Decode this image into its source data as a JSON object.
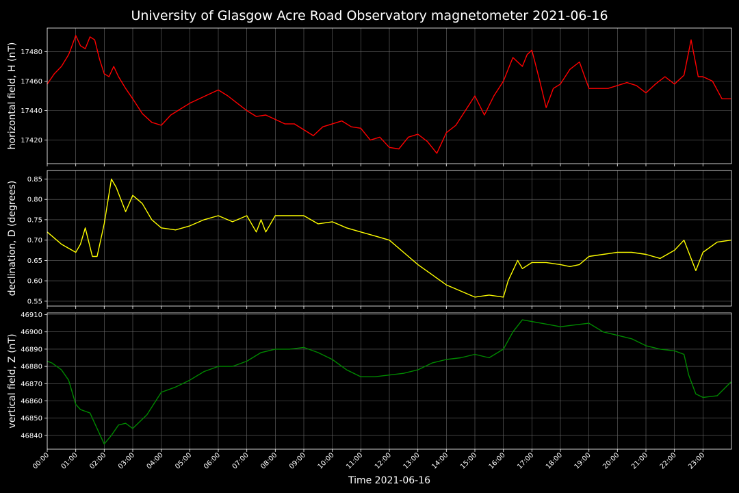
{
  "chart_data": {
    "type": "line",
    "title": "University of Glasgow Acre Road Observatory magnetometer 2021-06-16",
    "xlabel": "Time 2021-06-16",
    "x_ticks": [
      "00:00",
      "01:00",
      "02:00",
      "03:00",
      "04:00",
      "05:00",
      "06:00",
      "07:00",
      "08:00",
      "09:00",
      "10:00",
      "11:00",
      "12:00",
      "13:00",
      "14:00",
      "15:00",
      "16:00",
      "17:00",
      "18:00",
      "19:00",
      "20:00",
      "21:00",
      "22:00",
      "23:00"
    ],
    "xlim": [
      "00:00",
      "24:00"
    ],
    "grid": true,
    "panels": [
      {
        "ylabel": "horizontal field, H (nT)",
        "color": "#ff0000",
        "ylim": [
          17404,
          17496
        ],
        "yticks": [
          17420,
          17440,
          17460,
          17480
        ],
        "series": {
          "x": [
            "00:00",
            "00:15",
            "00:30",
            "00:45",
            "00:50",
            "01:00",
            "01:10",
            "01:20",
            "01:30",
            "01:40",
            "01:50",
            "02:00",
            "02:10",
            "02:20",
            "02:30",
            "02:45",
            "03:00",
            "03:20",
            "03:40",
            "04:00",
            "04:20",
            "04:40",
            "05:00",
            "05:20",
            "05:40",
            "06:00",
            "06:20",
            "06:40",
            "07:00",
            "07:20",
            "07:40",
            "08:00",
            "08:20",
            "08:40",
            "09:00",
            "09:20",
            "09:40",
            "10:00",
            "10:20",
            "10:40",
            "11:00",
            "11:20",
            "11:40",
            "12:00",
            "12:20",
            "12:40",
            "13:00",
            "13:20",
            "13:40",
            "14:00",
            "14:20",
            "14:40",
            "15:00",
            "15:20",
            "15:40",
            "16:00",
            "16:10",
            "16:20",
            "16:40",
            "16:50",
            "17:00",
            "17:15",
            "17:30",
            "17:45",
            "18:00",
            "18:20",
            "18:40",
            "19:00",
            "19:20",
            "19:40",
            "20:00",
            "20:20",
            "20:40",
            "21:00",
            "21:20",
            "21:40",
            "22:00",
            "22:20",
            "22:35",
            "22:50",
            "23:00",
            "23:20",
            "23:40",
            "23:59"
          ],
          "values": [
            17458,
            17465,
            17470,
            17478,
            17482,
            17491,
            17484,
            17482,
            17490,
            17488,
            17475,
            17465,
            17463,
            17470,
            17463,
            17455,
            17448,
            17438,
            17432,
            17430,
            17437,
            17441,
            17445,
            17448,
            17451,
            17454,
            17450,
            17445,
            17440,
            17436,
            17437,
            17434,
            17431,
            17431,
            17427,
            17423,
            17429,
            17431,
            17433,
            17429,
            17428,
            17420,
            17422,
            17415,
            17414,
            17422,
            17424,
            17419,
            17411,
            17425,
            17430,
            17440,
            17450,
            17437,
            17450,
            17460,
            17468,
            17476,
            17470,
            17478,
            17481,
            17462,
            17442,
            17455,
            17458,
            17468,
            17473,
            17455,
            17455,
            17455,
            17457,
            17459,
            17457,
            17452,
            17458,
            17463,
            17458,
            17464,
            17488,
            17463,
            17463,
            17460,
            17448,
            17448
          ]
        }
      },
      {
        "ylabel": "declination, D (degrees)",
        "color": "#ffff00",
        "ylim": [
          0.538,
          0.871
        ],
        "yticks": [
          0.55,
          0.6,
          0.65,
          0.7,
          0.75,
          0.8,
          0.85
        ],
        "series": {
          "x": [
            "00:00",
            "00:10",
            "00:20",
            "00:30",
            "00:45",
            "01:00",
            "01:10",
            "01:20",
            "01:35",
            "01:45",
            "02:00",
            "02:15",
            "02:25",
            "02:45",
            "03:00",
            "03:20",
            "03:40",
            "04:00",
            "04:30",
            "05:00",
            "05:30",
            "06:00",
            "06:30",
            "07:00",
            "07:20",
            "07:30",
            "07:40",
            "08:00",
            "08:30",
            "09:00",
            "09:30",
            "10:00",
            "10:30",
            "11:00",
            "11:30",
            "12:00",
            "12:30",
            "13:00",
            "13:30",
            "14:00",
            "14:30",
            "15:00",
            "15:30",
            "16:00",
            "16:10",
            "16:30",
            "16:40",
            "17:00",
            "17:30",
            "18:00",
            "18:20",
            "18:40",
            "19:00",
            "19:30",
            "20:00",
            "20:30",
            "21:00",
            "21:30",
            "22:00",
            "22:20",
            "22:30",
            "22:45",
            "23:00",
            "23:30",
            "23:59"
          ],
          "values": [
            0.72,
            0.71,
            0.7,
            0.69,
            0.68,
            0.67,
            0.69,
            0.73,
            0.66,
            0.66,
            0.74,
            0.85,
            0.83,
            0.77,
            0.81,
            0.79,
            0.75,
            0.73,
            0.725,
            0.735,
            0.75,
            0.76,
            0.745,
            0.76,
            0.72,
            0.75,
            0.72,
            0.76,
            0.76,
            0.76,
            0.74,
            0.745,
            0.73,
            0.72,
            0.71,
            0.7,
            0.67,
            0.64,
            0.615,
            0.59,
            0.575,
            0.56,
            0.565,
            0.56,
            0.6,
            0.65,
            0.63,
            0.645,
            0.645,
            0.64,
            0.635,
            0.64,
            0.66,
            0.665,
            0.67,
            0.67,
            0.665,
            0.655,
            0.675,
            0.7,
            0.67,
            0.625,
            0.67,
            0.695,
            0.7
          ]
        }
      },
      {
        "ylabel": "vertical field, Z (nT)",
        "color": "#008800",
        "ylim": [
          46832,
          46911
        ],
        "yticks": [
          46840,
          46850,
          46860,
          46870,
          46880,
          46890,
          46900,
          46910
        ],
        "series": {
          "x": [
            "00:00",
            "00:10",
            "00:30",
            "00:45",
            "01:00",
            "01:10",
            "01:30",
            "01:45",
            "02:00",
            "02:15",
            "02:30",
            "02:45",
            "03:00",
            "03:30",
            "04:00",
            "04:30",
            "05:00",
            "05:30",
            "06:00",
            "06:30",
            "07:00",
            "07:30",
            "08:00",
            "08:30",
            "09:00",
            "09:30",
            "10:00",
            "10:30",
            "11:00",
            "11:30",
            "12:00",
            "12:30",
            "13:00",
            "13:30",
            "14:00",
            "14:30",
            "15:00",
            "15:30",
            "16:00",
            "16:20",
            "16:40",
            "17:00",
            "17:20",
            "17:40",
            "18:00",
            "18:30",
            "19:00",
            "19:30",
            "20:00",
            "20:30",
            "21:00",
            "21:30",
            "22:00",
            "22:20",
            "22:30",
            "22:45",
            "23:00",
            "23:30",
            "23:59"
          ],
          "values": [
            46883,
            46882,
            46878,
            46872,
            46858,
            46855,
            46853,
            46844,
            46835,
            46840,
            46846,
            46847,
            46844,
            46852,
            46865,
            46868,
            46872,
            46877,
            46880,
            46880,
            46883,
            46888,
            46890,
            46890,
            46891,
            46888,
            46884,
            46878,
            46874,
            46874,
            46875,
            46876,
            46878,
            46882,
            46884,
            46885,
            46887,
            46885,
            46890,
            46900,
            46907,
            46906,
            46905,
            46904,
            46903,
            46904,
            46905,
            46900,
            46898,
            46896,
            46892,
            46890,
            46889,
            46887,
            46875,
            46864,
            46862,
            46863,
            46871
          ]
        }
      }
    ]
  }
}
